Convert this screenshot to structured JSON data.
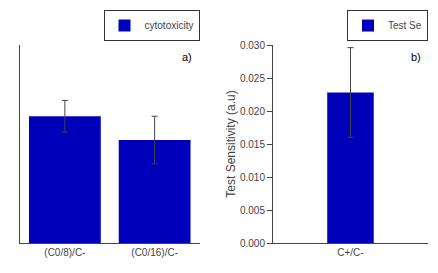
{
  "chart_data": [
    {
      "type": "bar",
      "categories": [
        "(C0/8)/C-",
        "(C0/16)/C-"
      ],
      "series": [
        {
          "name": "cytotoxicity",
          "color": "#0000BB",
          "values": [
            0.96,
            0.945
          ],
          "errors": [
            0.01,
            0.015
          ]
        }
      ],
      "ylim": [
        0.88,
        1.005
      ],
      "yticks": [],
      "tick_labels": "x",
      "grid": false,
      "legend": "top",
      "annotations": [
        {
          "text": "a)"
        }
      ]
    },
    {
      "type": "bar",
      "categories": [
        "C+/C-"
      ],
      "series": [
        {
          "name": "Test Se",
          "color": "#0000BB",
          "values": [
            0.0228
          ],
          "errors": [
            0.0068
          ]
        }
      ],
      "ylabel": "Test Sensitivity (a.u)",
      "ylim": [
        0.0,
        0.03
      ],
      "yticks": [
        {
          "value": 0,
          "label": "0.000"
        },
        0.005,
        {
          "value": 0.01,
          "label": "0.010"
        },
        0.015,
        {
          "value": 0.02,
          "label": "0.020"
        },
        0.025,
        {
          "value": 0.03,
          "label": "0.030"
        }
      ],
      "grid": false,
      "legend": "top",
      "annotations": [
        {
          "text": "b)"
        }
      ]
    }
  ]
}
